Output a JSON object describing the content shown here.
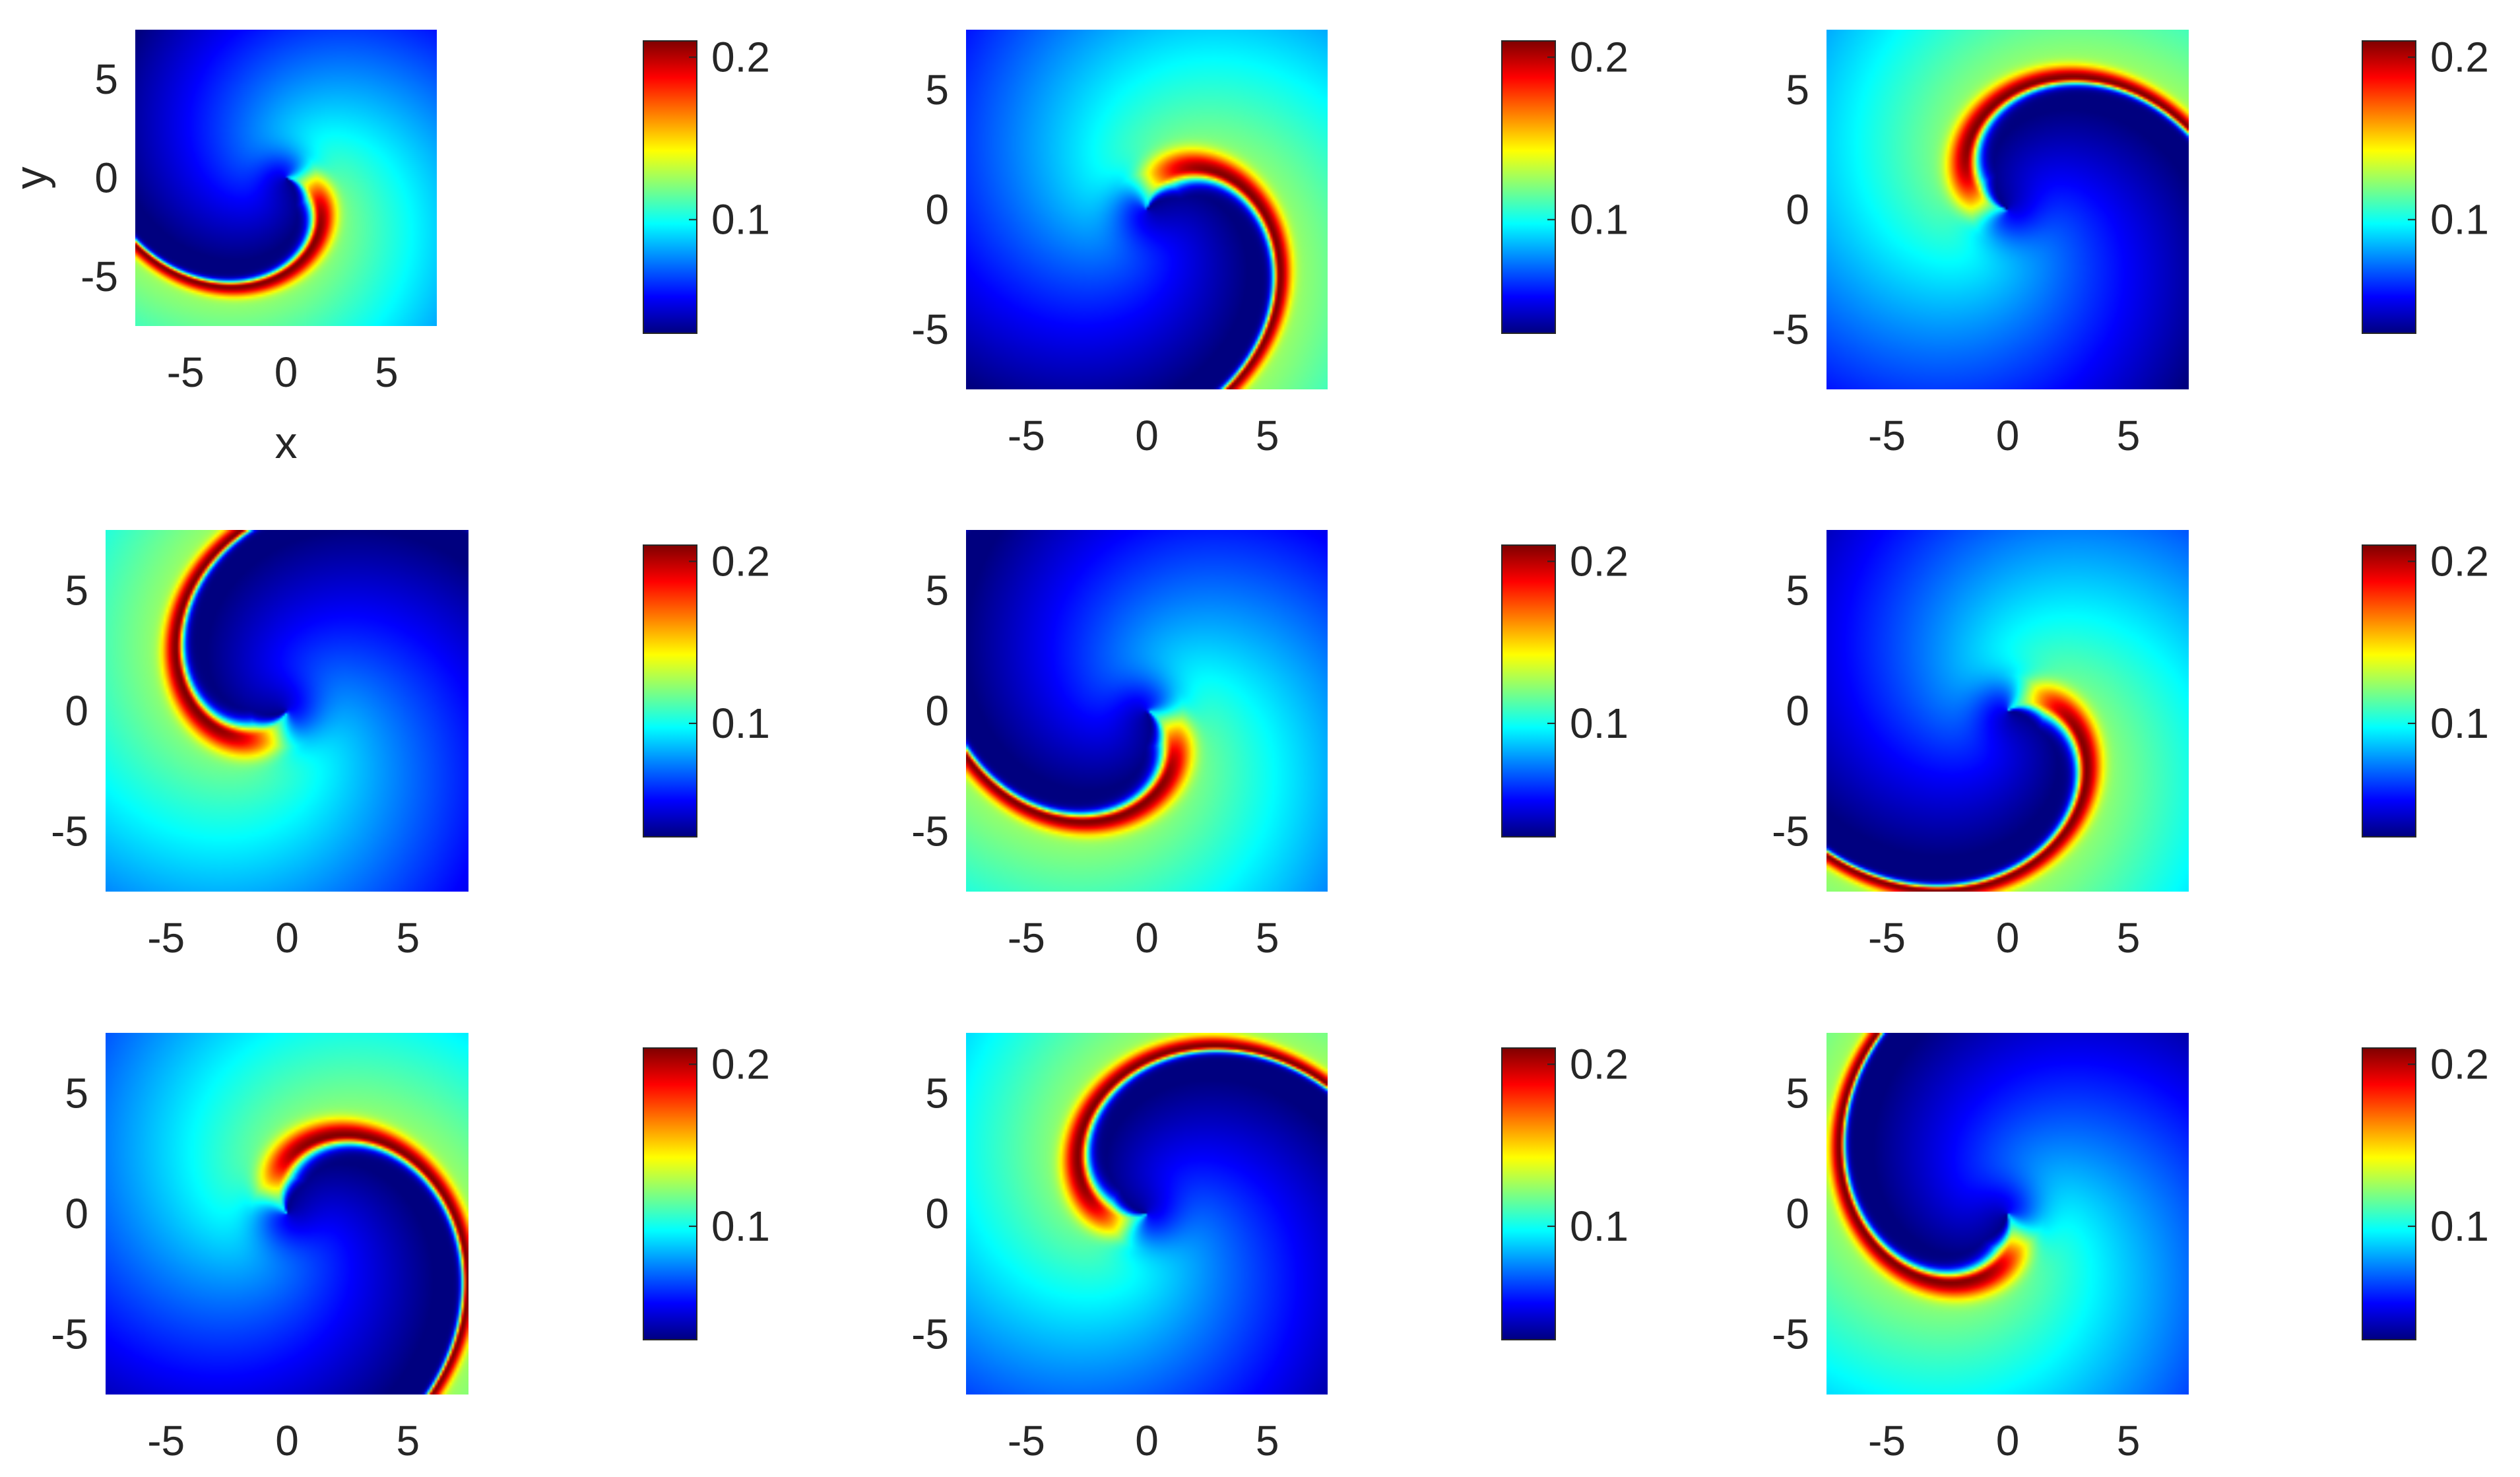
{
  "chart_data": {
    "type": "heatmap",
    "layout": {
      "rows": 3,
      "cols": 3
    },
    "colormap": "jet",
    "colormap_stops": [
      "#00007f",
      "#0000ff",
      "#007fff",
      "#00ffff",
      "#7fff7f",
      "#ffff00",
      "#ff7f00",
      "#ff0000",
      "#7f0000"
    ],
    "clim": [
      0.03,
      0.21
    ],
    "colorbar_ticks": [
      "0.1",
      "0.2"
    ],
    "colorbar_tick_values": [
      0.1,
      0.2
    ],
    "xlim": [
      -7.5,
      7.5
    ],
    "ylim": [
      -7.5,
      7.5
    ],
    "xticks": [
      "-5",
      "0",
      "5"
    ],
    "yticks": [
      "5",
      "0",
      "-5"
    ],
    "xlabel": "x",
    "ylabel": "y",
    "field": {
      "min": 0.03,
      "max": 0.21,
      "core_radius": 1.5,
      "arm_halfwidth": 1.1,
      "spiral_k": 0.33
    },
    "panels": [
      {
        "row": 0,
        "col": 0,
        "rotation_deg": 0
      },
      {
        "row": 0,
        "col": 1,
        "rotation_deg": 90
      },
      {
        "row": 0,
        "col": 2,
        "rotation_deg": 180
      },
      {
        "row": 1,
        "col": 0,
        "rotation_deg": 250
      },
      {
        "row": 1,
        "col": 1,
        "rotation_deg": 340
      },
      {
        "row": 1,
        "col": 2,
        "rotation_deg": 40
      },
      {
        "row": 2,
        "col": 0,
        "rotation_deg": 130
      },
      {
        "row": 2,
        "col": 1,
        "rotation_deg": 210
      },
      {
        "row": 2,
        "col": 2,
        "rotation_deg": 300
      }
    ]
  }
}
